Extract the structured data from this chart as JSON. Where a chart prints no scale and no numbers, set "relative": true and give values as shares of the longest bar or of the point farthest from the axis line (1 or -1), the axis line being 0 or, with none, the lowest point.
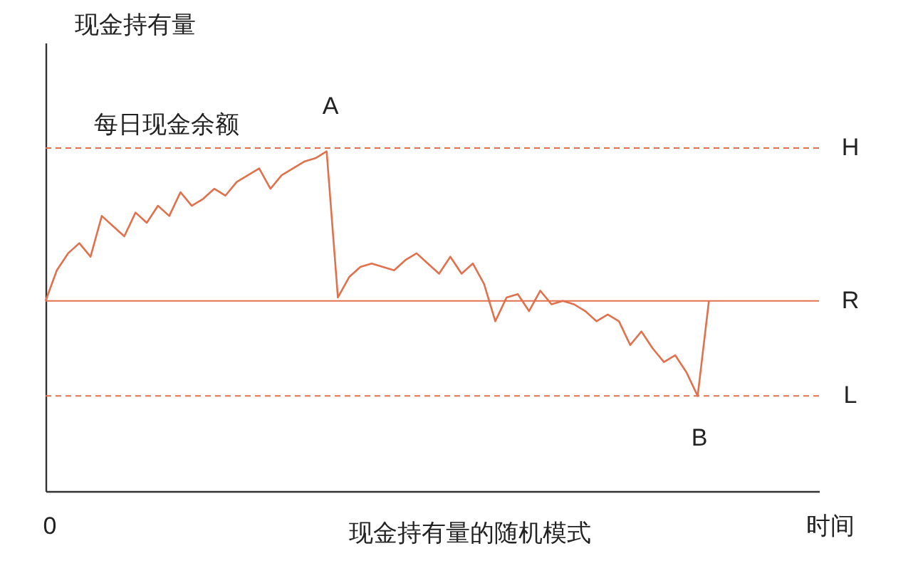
{
  "chart_data": {
    "type": "line",
    "relative": true,
    "title": "现金持有量的随机模式",
    "xlabel": "时间",
    "ylabel": "现金持有量",
    "categories": [
      null,
      null,
      null,
      null,
      null,
      null,
      null,
      null,
      null,
      null,
      null,
      null,
      null,
      null,
      null,
      null,
      null,
      null,
      null,
      null,
      null,
      null,
      null,
      null,
      null,
      null,
      null,
      null,
      null,
      null,
      null,
      null,
      null,
      null,
      null,
      null,
      null,
      null,
      null,
      null,
      null,
      null,
      null,
      null,
      null,
      null,
      null,
      null,
      null,
      null,
      null,
      null,
      null,
      null,
      null,
      null,
      null,
      null,
      null,
      null
    ],
    "series": [
      {
        "color": "#e0714c",
        "values": [
          0.56,
          0.65,
          0.7,
          0.73,
          0.69,
          0.81,
          0.78,
          0.75,
          0.82,
          0.79,
          0.84,
          0.81,
          0.88,
          0.84,
          0.86,
          0.89,
          0.87,
          0.91,
          0.93,
          0.95,
          0.89,
          0.93,
          0.95,
          0.97,
          0.98,
          1,
          0.57,
          0.63,
          0.66,
          0.67,
          0.66,
          0.65,
          0.68,
          0.7,
          0.67,
          0.64,
          0.69,
          0.64,
          0.67,
          0.61,
          0.5,
          0.57,
          0.58,
          0.53,
          0.59,
          0.55,
          0.56,
          0.55,
          0.53,
          0.5,
          0.52,
          0.5,
          0.43,
          0.47,
          0.42,
          0.38,
          0.4,
          0.35,
          0.28,
          0.56
        ]
      }
    ],
    "ref_lines": [
      {
        "axis": "y",
        "value": 1.01,
        "label": "H",
        "color": "#e0714c",
        "line_style": "dashed"
      },
      {
        "axis": "y",
        "value": 0.56,
        "label": "R",
        "color": "#e0714c",
        "line_style": "solid"
      },
      {
        "axis": "y",
        "value": 0.28,
        "label": "L",
        "color": "#e0714c",
        "line_style": "dashed"
      }
    ],
    "annotations": [
      "0",
      "每日现金余额",
      "A",
      "B"
    ],
    "line_style": "solid",
    "marker": "none",
    "grid": false
  }
}
